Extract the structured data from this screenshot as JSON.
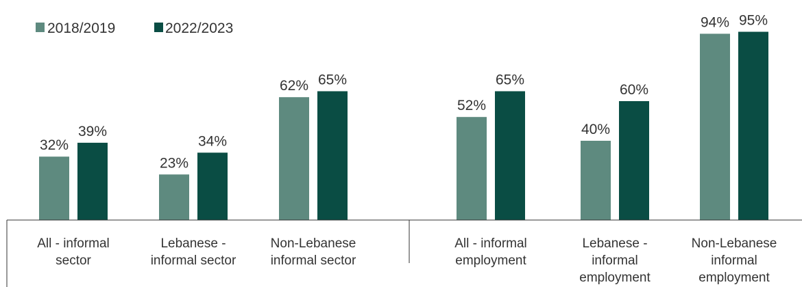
{
  "chart_data": {
    "type": "bar",
    "title": "",
    "xlabel": "",
    "ylabel": "",
    "ylim": [
      0,
      100
    ],
    "grid": false,
    "legend_position": "top-left",
    "categories": [
      [
        "All - informal",
        "sector"
      ],
      [
        "Lebanese -",
        "informal sector"
      ],
      [
        "Non-Lebanese",
        "informal sector"
      ],
      [
        "All - informal",
        "employment"
      ],
      [
        "Lebanese -",
        "informal",
        "employment"
      ],
      [
        "Non-Lebanese",
        "informal",
        "employment"
      ]
    ],
    "series": [
      {
        "name": "2018/2019",
        "color": "#5e8a7f",
        "values": [
          32,
          23,
          62,
          52,
          40,
          94
        ],
        "labels": [
          "32%",
          "23%",
          "62%",
          "52%",
          "40%",
          "94%"
        ]
      },
      {
        "name": "2022/2023",
        "color": "#0a4d44",
        "values": [
          39,
          34,
          65,
          65,
          60,
          95
        ],
        "labels": [
          "39%",
          "34%",
          "65%",
          "65%",
          "60%",
          "95%"
        ]
      }
    ]
  }
}
